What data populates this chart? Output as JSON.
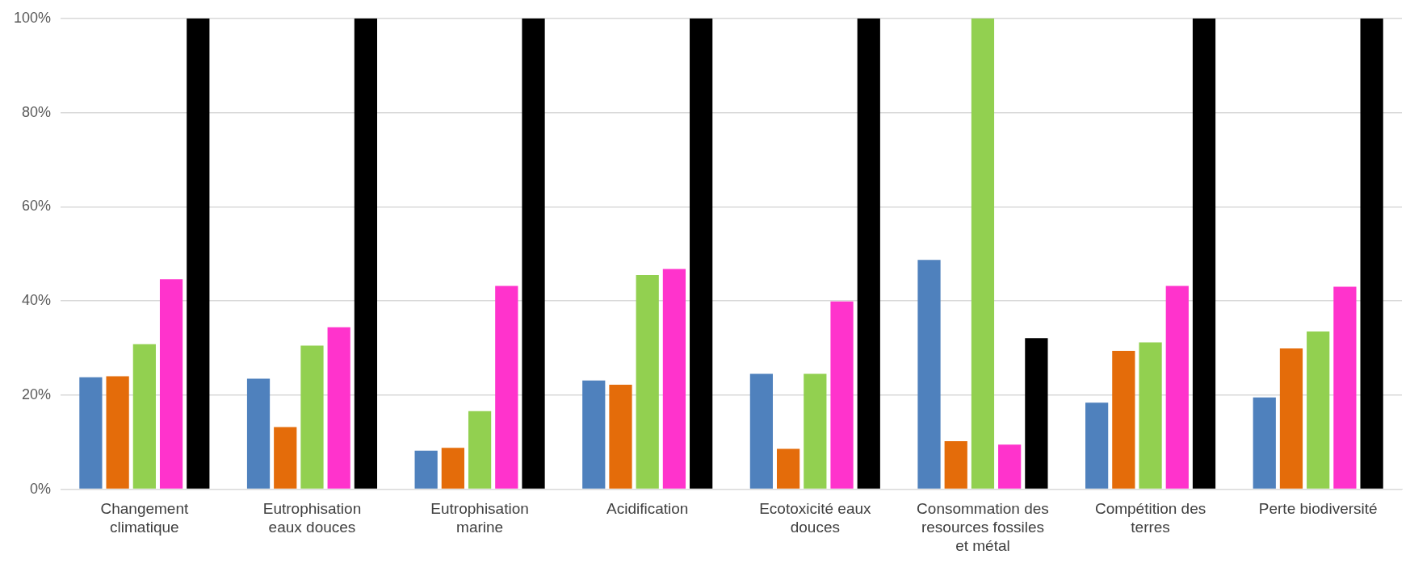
{
  "chart_data": {
    "type": "bar",
    "categories": [
      "Changement climatique",
      "Eutrophisation eaux douces",
      "Eutrophisation marine",
      "Acidification",
      "Ecotoxicité eaux douces",
      "Consommation des resources fossiles et métal",
      "Compétition des terres",
      "Perte biodiversité"
    ],
    "series": [
      {
        "color": "#4f81bd",
        "values": [
          23.8,
          23.5,
          8.2,
          23.1,
          24.5,
          48.7,
          18.4,
          19.5
        ]
      },
      {
        "color": "#e46c0a",
        "values": [
          24,
          13.2,
          8.8,
          22.2,
          8.6,
          10.2,
          29.4,
          29.9
        ]
      },
      {
        "color": "#92d050",
        "values": [
          30.8,
          30.5,
          16.6,
          45.5,
          24.5,
          100,
          31.2,
          33.5
        ]
      },
      {
        "color": "#ff33cc",
        "values": [
          44.6,
          34.4,
          43.2,
          46.8,
          39.9,
          9.5,
          43.2,
          43
        ]
      },
      {
        "color": "#000000",
        "values": [
          100,
          100,
          100,
          100,
          100,
          32.1,
          100,
          100
        ]
      }
    ],
    "ylim": [
      0,
      100
    ],
    "yticks": [
      {
        "value": 0,
        "label": "0%"
      },
      {
        "value": 20,
        "label": "20%"
      },
      {
        "value": 40,
        "label": "40%"
      },
      {
        "value": 60,
        "label": "60%"
      },
      {
        "value": 80,
        "label": "80%"
      },
      {
        "value": 100,
        "label": "100%"
      }
    ],
    "grid": "y",
    "legend": false
  }
}
